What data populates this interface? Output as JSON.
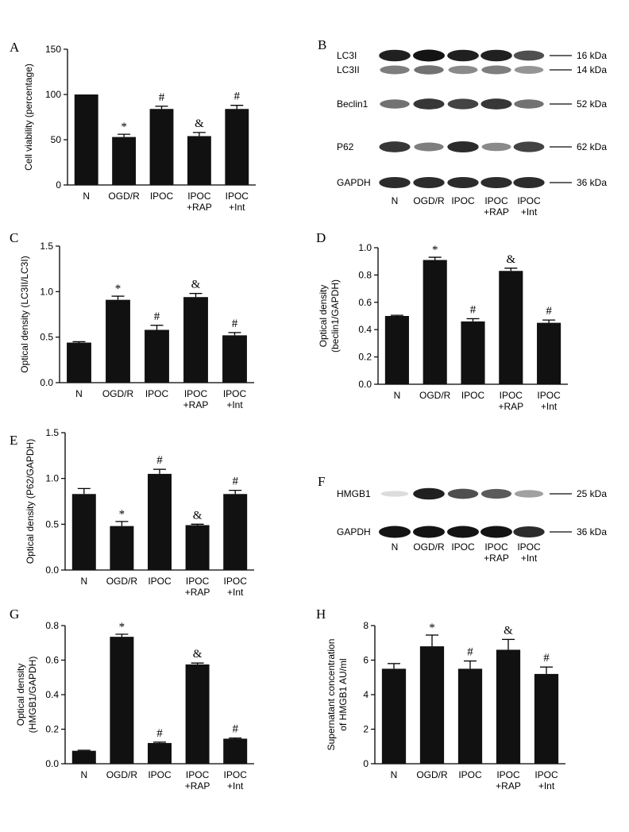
{
  "chart_data": [
    {
      "panel": "A",
      "type": "bar",
      "categories": [
        "N",
        "OGD/R",
        "IPOC",
        "IPOC\n+RAP",
        "IPOC\n+Int"
      ],
      "values": [
        100,
        53,
        84,
        54,
        84
      ],
      "errors": [
        0,
        3,
        3,
        4,
        4
      ],
      "marks": [
        "",
        "*",
        "#",
        "&",
        "#"
      ],
      "ylabel": "Cell viability (percentage)",
      "ylim": [
        0,
        150
      ],
      "yticks": [
        0,
        50,
        100,
        150
      ]
    },
    {
      "panel": "C",
      "type": "bar",
      "categories": [
        "N",
        "OGD/R",
        "IPOC",
        "IPOC\n+RAP",
        "IPOC\n+Int"
      ],
      "values": [
        0.44,
        0.91,
        0.58,
        0.94,
        0.52
      ],
      "errors": [
        0.01,
        0.04,
        0.05,
        0.04,
        0.03
      ],
      "marks": [
        "",
        "*",
        "#",
        "&",
        "#"
      ],
      "ylabel": "Optical density (LC3II/LC3I)",
      "ylim": [
        0,
        1.5
      ],
      "yticks": [
        "0.0",
        "0.5",
        "1.0",
        "1.5"
      ]
    },
    {
      "panel": "D",
      "type": "bar",
      "categories": [
        "N",
        "OGD/R",
        "IPOC",
        "IPOC\n+RAP",
        "IPOC\n+Int"
      ],
      "values": [
        0.5,
        0.91,
        0.46,
        0.83,
        0.45
      ],
      "errors": [
        0.005,
        0.02,
        0.02,
        0.02,
        0.02
      ],
      "marks": [
        "",
        "*",
        "#",
        "&",
        "#"
      ],
      "ylabel": "Optical density\n(beclin1/GAPDH)",
      "ylim": [
        0,
        1.0
      ],
      "yticks": [
        "0.0",
        "0.2",
        "0.4",
        "0.6",
        "0.8",
        "1.0"
      ]
    },
    {
      "panel": "E",
      "type": "bar",
      "categories": [
        "N",
        "OGD/R",
        "IPOC",
        "IPOC\n+RAP",
        "IPOC\n+Int"
      ],
      "values": [
        0.83,
        0.48,
        1.05,
        0.49,
        0.83
      ],
      "errors": [
        0.06,
        0.05,
        0.05,
        0.01,
        0.04
      ],
      "marks": [
        "",
        "*",
        "#",
        "&",
        "#"
      ],
      "ylabel": "Optical density (P62/GAPDH)",
      "ylim": [
        0,
        1.5
      ],
      "yticks": [
        "0.0",
        "0.5",
        "1.0",
        "1.5"
      ]
    },
    {
      "panel": "G",
      "type": "bar",
      "categories": [
        "N",
        "OGD/R",
        "IPOC",
        "IPOC\n+RAP",
        "IPOC\n+Int"
      ],
      "values": [
        0.075,
        0.735,
        0.12,
        0.575,
        0.145
      ],
      "errors": [
        0.003,
        0.015,
        0.005,
        0.008,
        0.004
      ],
      "marks": [
        "",
        "*",
        "#",
        "&",
        "#"
      ],
      "ylabel": "Optical density\n(HMGB1/GAPDH)",
      "ylim": [
        0,
        0.8
      ],
      "yticks": [
        "0.0",
        "0.2",
        "0.4",
        "0.6",
        "0.8"
      ]
    },
    {
      "panel": "H",
      "type": "bar",
      "categories": [
        "N",
        "OGD/R",
        "IPOC",
        "IPOC\n+RAP",
        "IPOC\n+Int"
      ],
      "values": [
        5.5,
        6.8,
        5.5,
        6.6,
        5.2
      ],
      "errors": [
        0.3,
        0.65,
        0.45,
        0.6,
        0.4
      ],
      "marks": [
        "",
        "*",
        "#",
        "&",
        "#"
      ],
      "ylabel": "Supernatant concentration\nof HMGB1 AU/ml",
      "ylim": [
        0,
        8
      ],
      "yticks": [
        "0",
        "2",
        "4",
        "6",
        "8"
      ]
    }
  ],
  "blots": [
    {
      "panel": "B",
      "bands": [
        {
          "label": "LC3I",
          "kda": "16 kDa",
          "intensities": [
            0.95,
            1.0,
            0.95,
            0.95,
            0.75
          ]
        },
        {
          "label": "LC3II",
          "kda": "14 kDa",
          "intensities": [
            0.55,
            0.6,
            0.5,
            0.55,
            0.45
          ]
        },
        {
          "label": "Beclin1",
          "kda": "52 kDa",
          "intensities": [
            0.6,
            0.85,
            0.8,
            0.85,
            0.6
          ]
        },
        {
          "label": "P62",
          "kda": "62 kDa",
          "intensities": [
            0.85,
            0.55,
            0.9,
            0.5,
            0.8
          ]
        },
        {
          "label": "GAPDH",
          "kda": "36 kDa",
          "intensities": [
            0.9,
            0.9,
            0.9,
            0.9,
            0.9
          ]
        }
      ],
      "lanes": [
        "N",
        "OGD/R",
        "IPOC",
        "IPOC\n+RAP",
        "IPOC\n+Int"
      ]
    },
    {
      "panel": "F",
      "bands": [
        {
          "label": "HMGB1",
          "kda": "25 kDa",
          "intensities": [
            0.15,
            0.95,
            0.75,
            0.7,
            0.4
          ]
        },
        {
          "label": "GAPDH",
          "kda": "36 kDa",
          "intensities": [
            1.0,
            1.0,
            1.0,
            1.0,
            0.9
          ]
        }
      ],
      "lanes": [
        "N",
        "OGD/R",
        "IPOC",
        "IPOC\n+RAP",
        "IPOC\n+Int"
      ]
    }
  ]
}
